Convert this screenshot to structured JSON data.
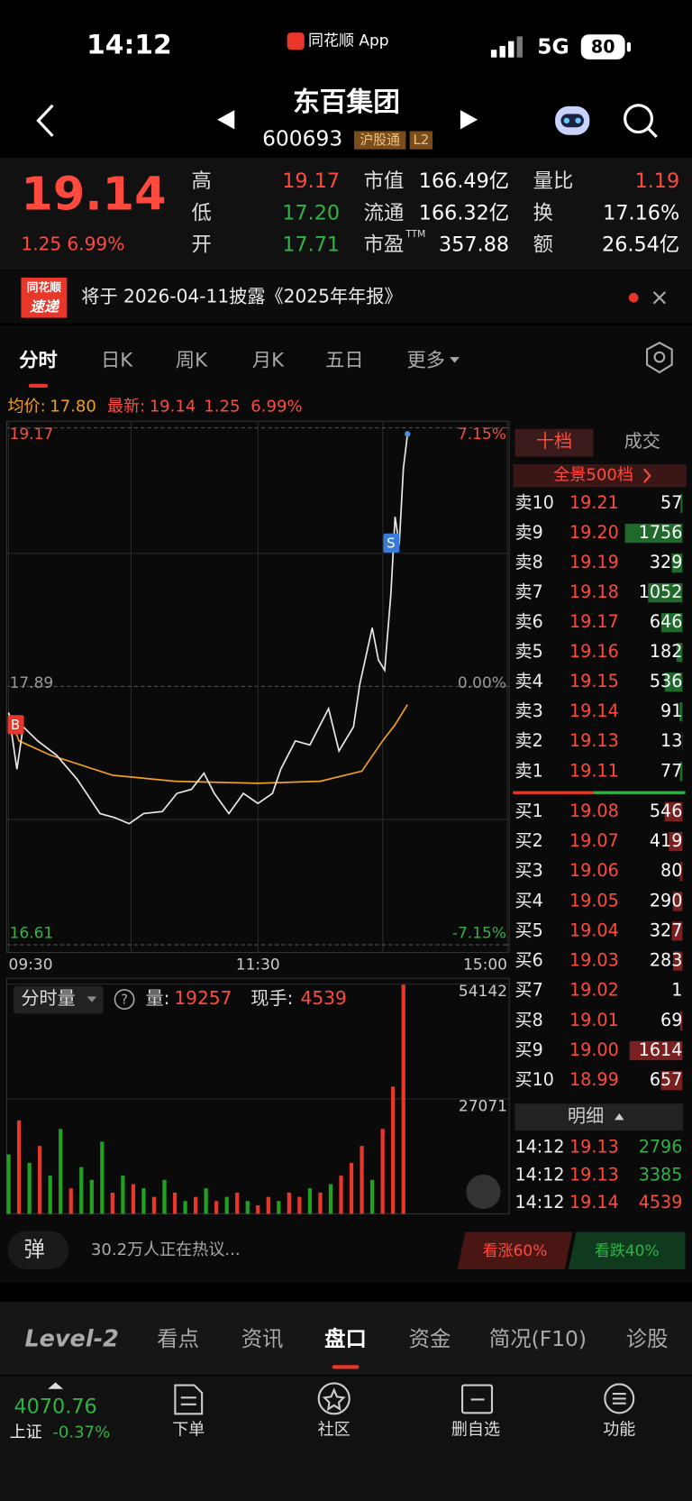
{
  "status": {
    "time": "14:12",
    "app": "同花顺 App",
    "network": "5G",
    "battery": "80"
  },
  "header": {
    "name": "东百集团",
    "code": "600693",
    "tags": [
      "沪股通",
      "L2"
    ]
  },
  "quote": {
    "price": "19.14",
    "change": "1.25",
    "pct": "6.99%",
    "stats": [
      {
        "label": "高",
        "value": "19.17",
        "color": "#ff4a3d"
      },
      {
        "label": "低",
        "value": "17.20",
        "color": "#2fb344"
      },
      {
        "label": "开",
        "value": "17.71",
        "color": "#2fb344"
      },
      {
        "label": "市值",
        "value": "166.49亿",
        "color": "#ffffff"
      },
      {
        "label": "流通",
        "value": "166.32亿",
        "color": "#ffffff"
      },
      {
        "label": "市盈",
        "sup": "TTM",
        "value": "357.88",
        "color": "#ffffff"
      },
      {
        "label": "量比",
        "value": "1.19",
        "color": "#ff4a3d"
      },
      {
        "label": "换",
        "value": "17.16%",
        "color": "#ffffff"
      },
      {
        "label": "额",
        "value": "26.54亿",
        "color": "#ffffff"
      }
    ]
  },
  "notice": {
    "badge": [
      "同花顺",
      "速递"
    ],
    "text": "将于 2026-04-11披露《2025年年报》"
  },
  "tabs": [
    "分时",
    "日K",
    "周K",
    "月K",
    "五日",
    "更多"
  ],
  "chart_data": [
    {
      "type": "line",
      "info": {
        "latest": "19.14",
        "change": "1.25",
        "pct": "6.99%",
        "avg": "17.80"
      },
      "series": [
        {
          "name": "均价:",
          "color": "#f0a020",
          "x": [
            0,
            5,
            20,
            50,
            80,
            120,
            150,
            170,
            180,
            186,
            192
          ],
          "values": [
            17.76,
            17.62,
            17.55,
            17.45,
            17.42,
            17.41,
            17.42,
            17.47,
            17.62,
            17.7,
            17.8
          ]
        },
        {
          "name": "最新:",
          "color": "#e8e8e8",
          "x": [
            0,
            4,
            7,
            14,
            23,
            33,
            44,
            51,
            58,
            65,
            74,
            81,
            88,
            94,
            99,
            106,
            113,
            120,
            127,
            131,
            138,
            145,
            154,
            159,
            166,
            169,
            175,
            178,
            181,
            184,
            186,
            188,
            190,
            192
          ],
          "values": [
            17.76,
            17.48,
            17.69,
            17.62,
            17.55,
            17.43,
            17.26,
            17.24,
            17.21,
            17.26,
            17.27,
            17.36,
            17.38,
            17.46,
            17.36,
            17.26,
            17.36,
            17.31,
            17.36,
            17.48,
            17.62,
            17.6,
            17.78,
            17.57,
            17.69,
            17.9,
            18.18,
            18.02,
            17.97,
            18.35,
            18.73,
            18.59,
            18.97,
            19.14
          ]
        }
      ],
      "xlim": [
        0,
        240
      ],
      "xticks": [
        {
          "value": 0,
          "label": "09:30"
        },
        {
          "value": 120,
          "label": "11:30"
        },
        {
          "value": 240,
          "label": "15:00"
        }
      ],
      "ylim": [
        16.61,
        19.17
      ],
      "yticks": [
        16.61,
        17.89,
        19.17
      ],
      "y2lim": [
        -7.15,
        7.15
      ],
      "y2ticks": [
        {
          "value": -7.15,
          "label": "-7.15%"
        },
        {
          "value": 0,
          "label": "0.00%"
        },
        {
          "value": 7.15,
          "label": "7.15%"
        }
      ],
      "grid": true,
      "annotations": [
        {
          "text": "B",
          "x": 0,
          "y": 17.7,
          "color": "#e8362a"
        },
        {
          "text": "S",
          "x": 184,
          "y": 18.6,
          "color": "#3a7bd5"
        }
      ]
    },
    {
      "type": "bar",
      "title": "分时量",
      "info": [
        {
          "label": "量:",
          "value": "19257"
        },
        {
          "label": "现手:",
          "value": "4539"
        }
      ],
      "x": [
        0,
        5,
        10,
        15,
        20,
        25,
        30,
        35,
        40,
        45,
        50,
        55,
        60,
        65,
        70,
        75,
        80,
        85,
        90,
        95,
        100,
        105,
        110,
        115,
        120,
        125,
        130,
        135,
        140,
        145,
        150,
        155,
        160,
        165,
        170,
        175,
        180,
        185,
        190
      ],
      "values": [
        14000,
        22000,
        12000,
        16000,
        9000,
        20000,
        6000,
        11000,
        8000,
        17000,
        5000,
        9000,
        7000,
        6000,
        4000,
        8000,
        5000,
        3000,
        4000,
        6000,
        3000,
        4000,
        5000,
        3000,
        2000,
        4000,
        3000,
        5000,
        4000,
        6000,
        5000,
        7000,
        9000,
        12000,
        16000,
        8000,
        20000,
        30000,
        54000
      ],
      "colors": [
        "#22a022",
        "#e8362a",
        "#22a022",
        "#e8362a",
        "#22a022",
        "#22a022",
        "#e8362a",
        "#22a022",
        "#22a022",
        "#22a022",
        "#e8362a",
        "#22a022",
        "#e8362a",
        "#22a022",
        "#e8362a",
        "#22a022",
        "#e8362a",
        "#22a022",
        "#e8362a",
        "#22a022",
        "#e8362a",
        "#22a022",
        "#e8362a",
        "#22a022",
        "#e8362a",
        "#e8362a",
        "#22a022",
        "#e8362a",
        "#e8362a",
        "#22a022",
        "#e8362a",
        "#22a022",
        "#e8362a",
        "#e8362a",
        "#e8362a",
        "#22a022",
        "#e8362a",
        "#e8362a",
        "#e8362a"
      ],
      "xlim": [
        0,
        240
      ],
      "ylim": [
        0,
        54142
      ],
      "yticks": [
        27071,
        54142
      ],
      "grid": true
    }
  ],
  "orderbook": {
    "tabs": [
      "十档",
      "成交"
    ],
    "panorama": "全景500档",
    "asks": [
      {
        "label": "卖10",
        "price": "19.21",
        "vol": 57
      },
      {
        "label": "卖9",
        "price": "19.20",
        "vol": 1756
      },
      {
        "label": "卖8",
        "price": "19.19",
        "vol": 329
      },
      {
        "label": "卖7",
        "price": "19.18",
        "vol": 1052
      },
      {
        "label": "卖6",
        "price": "19.17",
        "vol": 646
      },
      {
        "label": "卖5",
        "price": "19.16",
        "vol": 182
      },
      {
        "label": "卖4",
        "price": "19.15",
        "vol": 536
      },
      {
        "label": "卖3",
        "price": "19.14",
        "vol": 91
      },
      {
        "label": "卖2",
        "price": "19.13",
        "vol": 13
      },
      {
        "label": "卖1",
        "price": "19.11",
        "vol": 77
      }
    ],
    "bids": [
      {
        "label": "买1",
        "price": "19.08",
        "vol": 546
      },
      {
        "label": "买2",
        "price": "19.07",
        "vol": 419
      },
      {
        "label": "买3",
        "price": "19.06",
        "vol": 80
      },
      {
        "label": "买4",
        "price": "19.05",
        "vol": 290
      },
      {
        "label": "买5",
        "price": "19.04",
        "vol": 327
      },
      {
        "label": "买6",
        "price": "19.03",
        "vol": 283
      },
      {
        "label": "买7",
        "price": "19.02",
        "vol": 1
      },
      {
        "label": "买8",
        "price": "19.01",
        "vol": 69
      },
      {
        "label": "买9",
        "price": "19.00",
        "vol": 1614
      },
      {
        "label": "买10",
        "price": "18.99",
        "vol": 657
      }
    ],
    "detail": "明细",
    "trades": [
      {
        "time": "14:12",
        "price": "19.13",
        "vol": "2796",
        "color": "#2fb344"
      },
      {
        "time": "14:12",
        "price": "19.13",
        "vol": "3385",
        "color": "#2fb344"
      },
      {
        "time": "14:12",
        "price": "19.14",
        "vol": "4539",
        "color": "#ff4a3d"
      }
    ]
  },
  "discussion": {
    "badge": "弹",
    "text": "30.2万人正在热议...",
    "bull": "看涨60%",
    "bear": "看跌40%"
  },
  "bottom_tabs": [
    "Level-2",
    "看点",
    "资讯",
    "盘口",
    "资金",
    "简况(F10)",
    "诊股"
  ],
  "nav": {
    "index_value": "4070.76",
    "index_name": "上证",
    "index_pct": "-0.37%",
    "items": [
      "下单",
      "社区",
      "删自选",
      "功能"
    ]
  }
}
